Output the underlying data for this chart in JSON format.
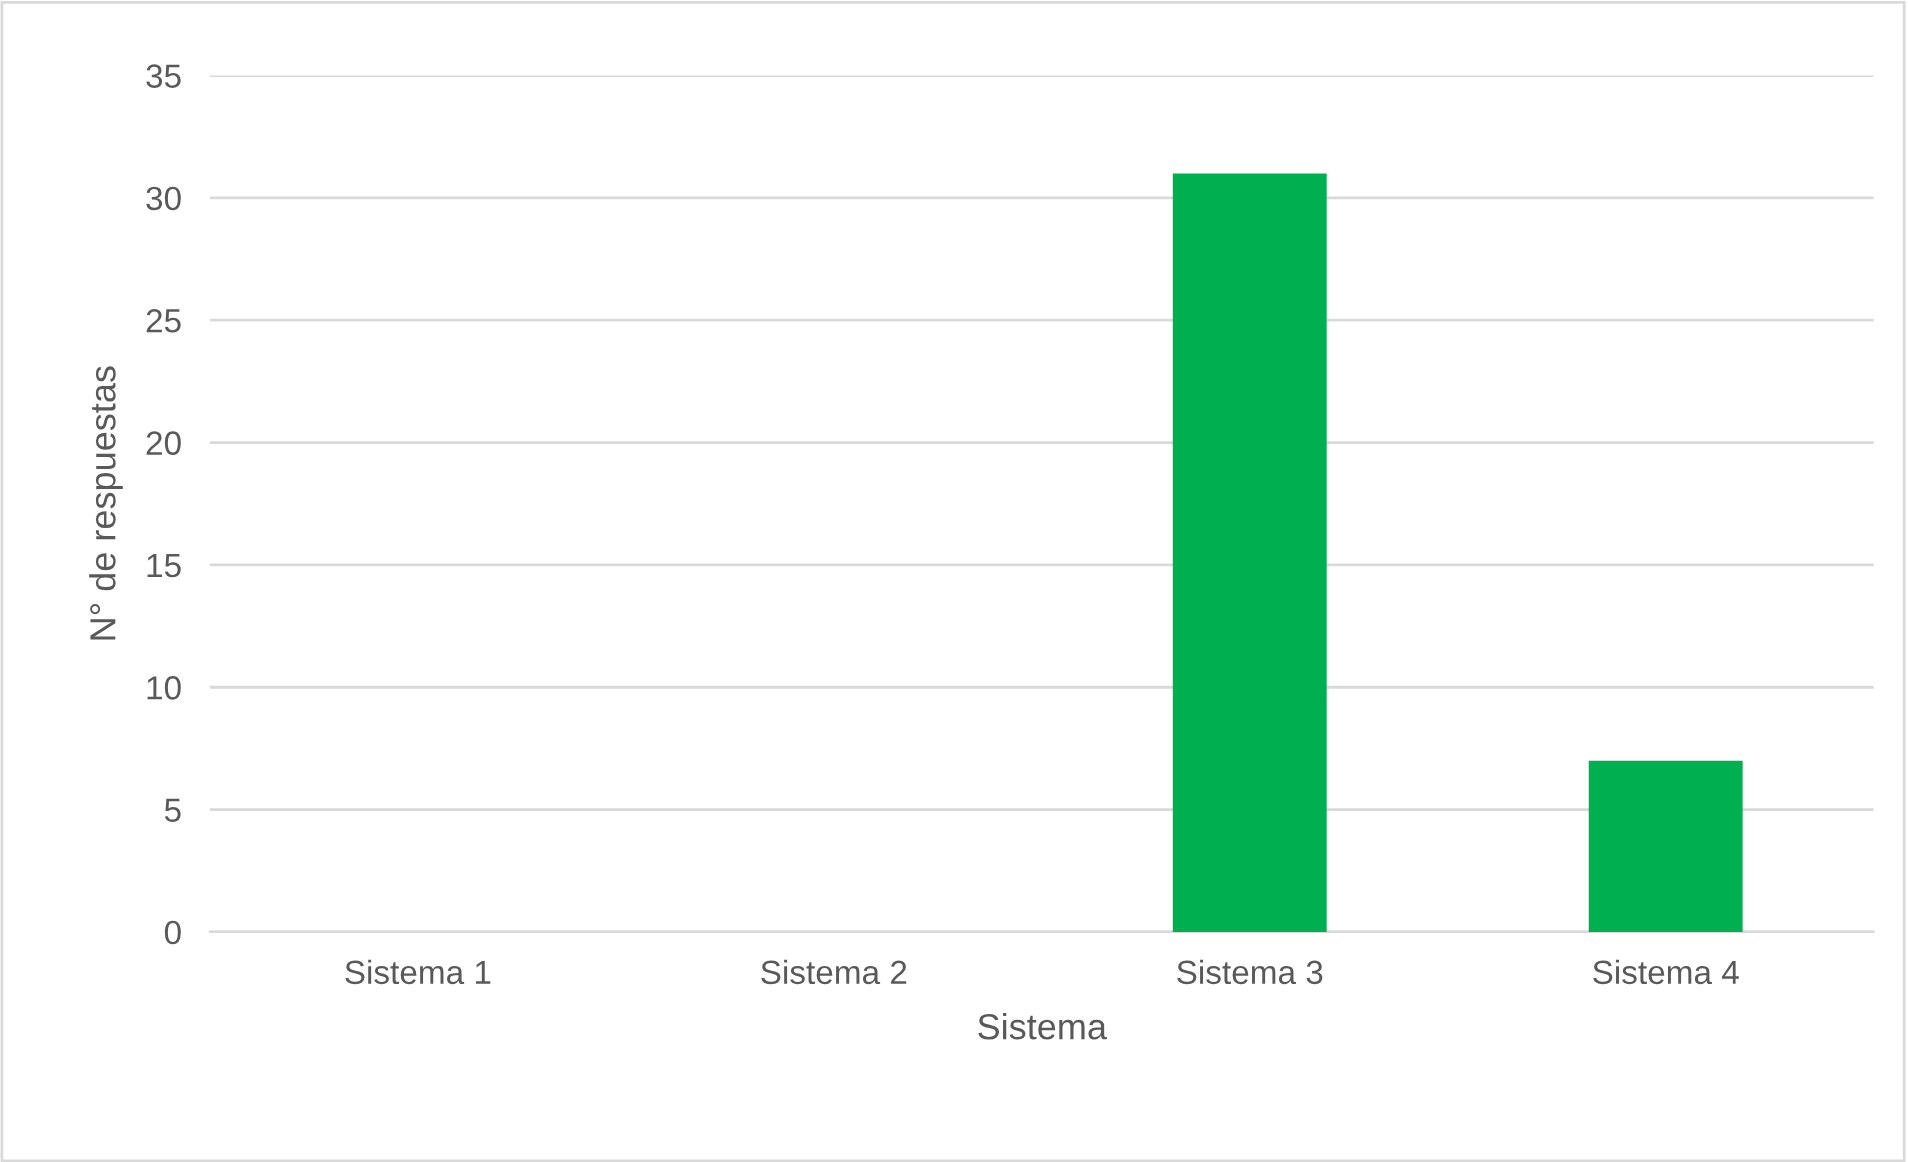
{
  "chart_data": {
    "type": "bar",
    "xlabel": "Sistema",
    "ylabel": "N° de respuestas",
    "categories": [
      "Sistema 1",
      "Sistema 2",
      "Sistema 3",
      "Sistema 4"
    ],
    "values": [
      0,
      0,
      31,
      7
    ],
    "color": "#00b050",
    "ylim": [
      0,
      35
    ],
    "yticks": [
      0,
      5,
      10,
      15,
      20,
      25,
      30,
      35
    ],
    "grid": "y",
    "legend": false
  }
}
